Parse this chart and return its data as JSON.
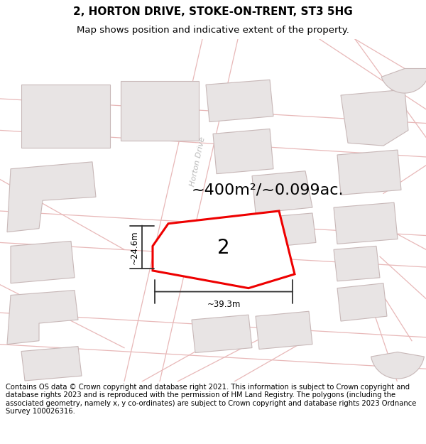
{
  "title": "2, HORTON DRIVE, STOKE-ON-TRENT, ST3 5HG",
  "subtitle": "Map shows position and indicative extent of the property.",
  "footer": "Contains OS data © Crown copyright and database right 2021. This information is subject to Crown copyright and database rights 2023 and is reproduced with the permission of HM Land Registry. The polygons (including the associated geometry, namely x, y co-ordinates) are subject to Crown copyright and database rights 2023 Ordnance Survey 100026316.",
  "area_text": "~400m²/~0.099ac.",
  "dim_width": "~39.3m",
  "dim_height": "~24.6m",
  "property_label": "2",
  "bg_color": "#ffffff",
  "map_bg": "#ffffff",
  "building_fill": "#e8e4e4",
  "building_edge": "#c8b8b8",
  "road_edge": "#e8b8b8",
  "property_fill": "#ffffff",
  "property_edge": "#ee0000",
  "title_fontsize": 11,
  "subtitle_fontsize": 9.5,
  "footer_fontsize": 7.2,
  "horton_drive_label": "Horton Drive",
  "road_label_color": "#bbbbbb",
  "dim_color": "#333333",
  "area_fontsize": 16,
  "label_fontsize": 20
}
